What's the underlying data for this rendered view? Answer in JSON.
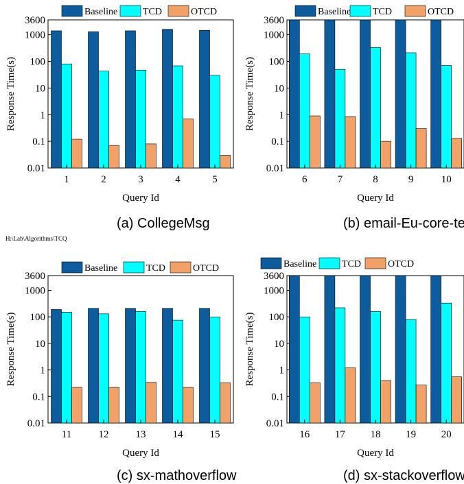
{
  "colors": {
    "Baseline": "#0d5c9e",
    "TCD": "#00ffff",
    "OTCD": "#f2a268"
  },
  "path_note": "H:\\Lab\\Algorithms\\TCQ",
  "chart_data": [
    {
      "type": "bar",
      "caption": "(a) CollegeMsg",
      "categories": [
        "1",
        "2",
        "3",
        "4",
        "5"
      ],
      "series": [
        {
          "name": "Baseline",
          "values": [
            1400,
            1300,
            1400,
            1600,
            1450
          ]
        },
        {
          "name": "TCD",
          "values": [
            80,
            43,
            47,
            68,
            30
          ]
        },
        {
          "name": "OTCD",
          "values": [
            0.12,
            0.07,
            0.08,
            0.7,
            0.03
          ]
        }
      ],
      "xlabel": "Query Id",
      "ylabel": "Response Time(s)",
      "yscale": "log",
      "ylim": [
        0.01,
        3600
      ],
      "yticks": [
        "0.01",
        "0.1",
        "1",
        "10",
        "100",
        "1000",
        "3600"
      ],
      "legend": "top"
    },
    {
      "type": "bar",
      "caption": "(b) email-Eu-core-temporal",
      "categories": [
        "6",
        "7",
        "8",
        "9",
        "10"
      ],
      "series": [
        {
          "name": "Baseline",
          "values": [
            3600,
            3600,
            3600,
            3600,
            3600
          ]
        },
        {
          "name": "TCD",
          "values": [
            190,
            50,
            330,
            210,
            70
          ]
        },
        {
          "name": "OTCD",
          "values": [
            0.9,
            0.85,
            0.1,
            0.3,
            0.13
          ]
        }
      ],
      "xlabel": "Query Id",
      "ylabel": "Response Time(s)",
      "yscale": "log",
      "ylim": [
        0.01,
        3600
      ],
      "yticks": [
        "0.01",
        "0.1",
        "1",
        "10",
        "100",
        "1000",
        "3600"
      ],
      "legend": "top"
    },
    {
      "type": "bar",
      "caption": "(c) sx-mathoverflow",
      "categories": [
        "11",
        "12",
        "13",
        "14",
        "15"
      ],
      "series": [
        {
          "name": "Baseline",
          "values": [
            190,
            210,
            210,
            210,
            210
          ]
        },
        {
          "name": "TCD",
          "values": [
            150,
            130,
            160,
            75,
            100
          ]
        },
        {
          "name": "OTCD",
          "values": [
            0.22,
            0.22,
            0.34,
            0.22,
            0.33
          ]
        }
      ],
      "xlabel": "Query Id",
      "ylabel": "Response Time(s)",
      "yscale": "log",
      "ylim": [
        0.01,
        3600
      ],
      "yticks": [
        "0.01",
        "0.1",
        "1",
        "10",
        "100",
        "1000",
        "3600"
      ],
      "legend": "top"
    },
    {
      "type": "bar",
      "caption": "(d) sx-stackoverflow",
      "categories": [
        "16",
        "17",
        "18",
        "19",
        "20"
      ],
      "series": [
        {
          "name": "Baseline",
          "values": [
            3600,
            3600,
            3600,
            3600,
            3600
          ]
        },
        {
          "name": "TCD",
          "values": [
            100,
            220,
            160,
            80,
            330
          ]
        },
        {
          "name": "OTCD",
          "values": [
            0.33,
            1.2,
            0.4,
            0.27,
            0.55
          ]
        }
      ],
      "xlabel": "Query Id",
      "ylabel": "Response Time(s)",
      "yscale": "log",
      "ylim": [
        0.01,
        3600
      ],
      "yticks": [
        "0.01",
        "0.1",
        "1",
        "10",
        "100",
        "1000",
        "3600"
      ],
      "legend": "top"
    }
  ]
}
